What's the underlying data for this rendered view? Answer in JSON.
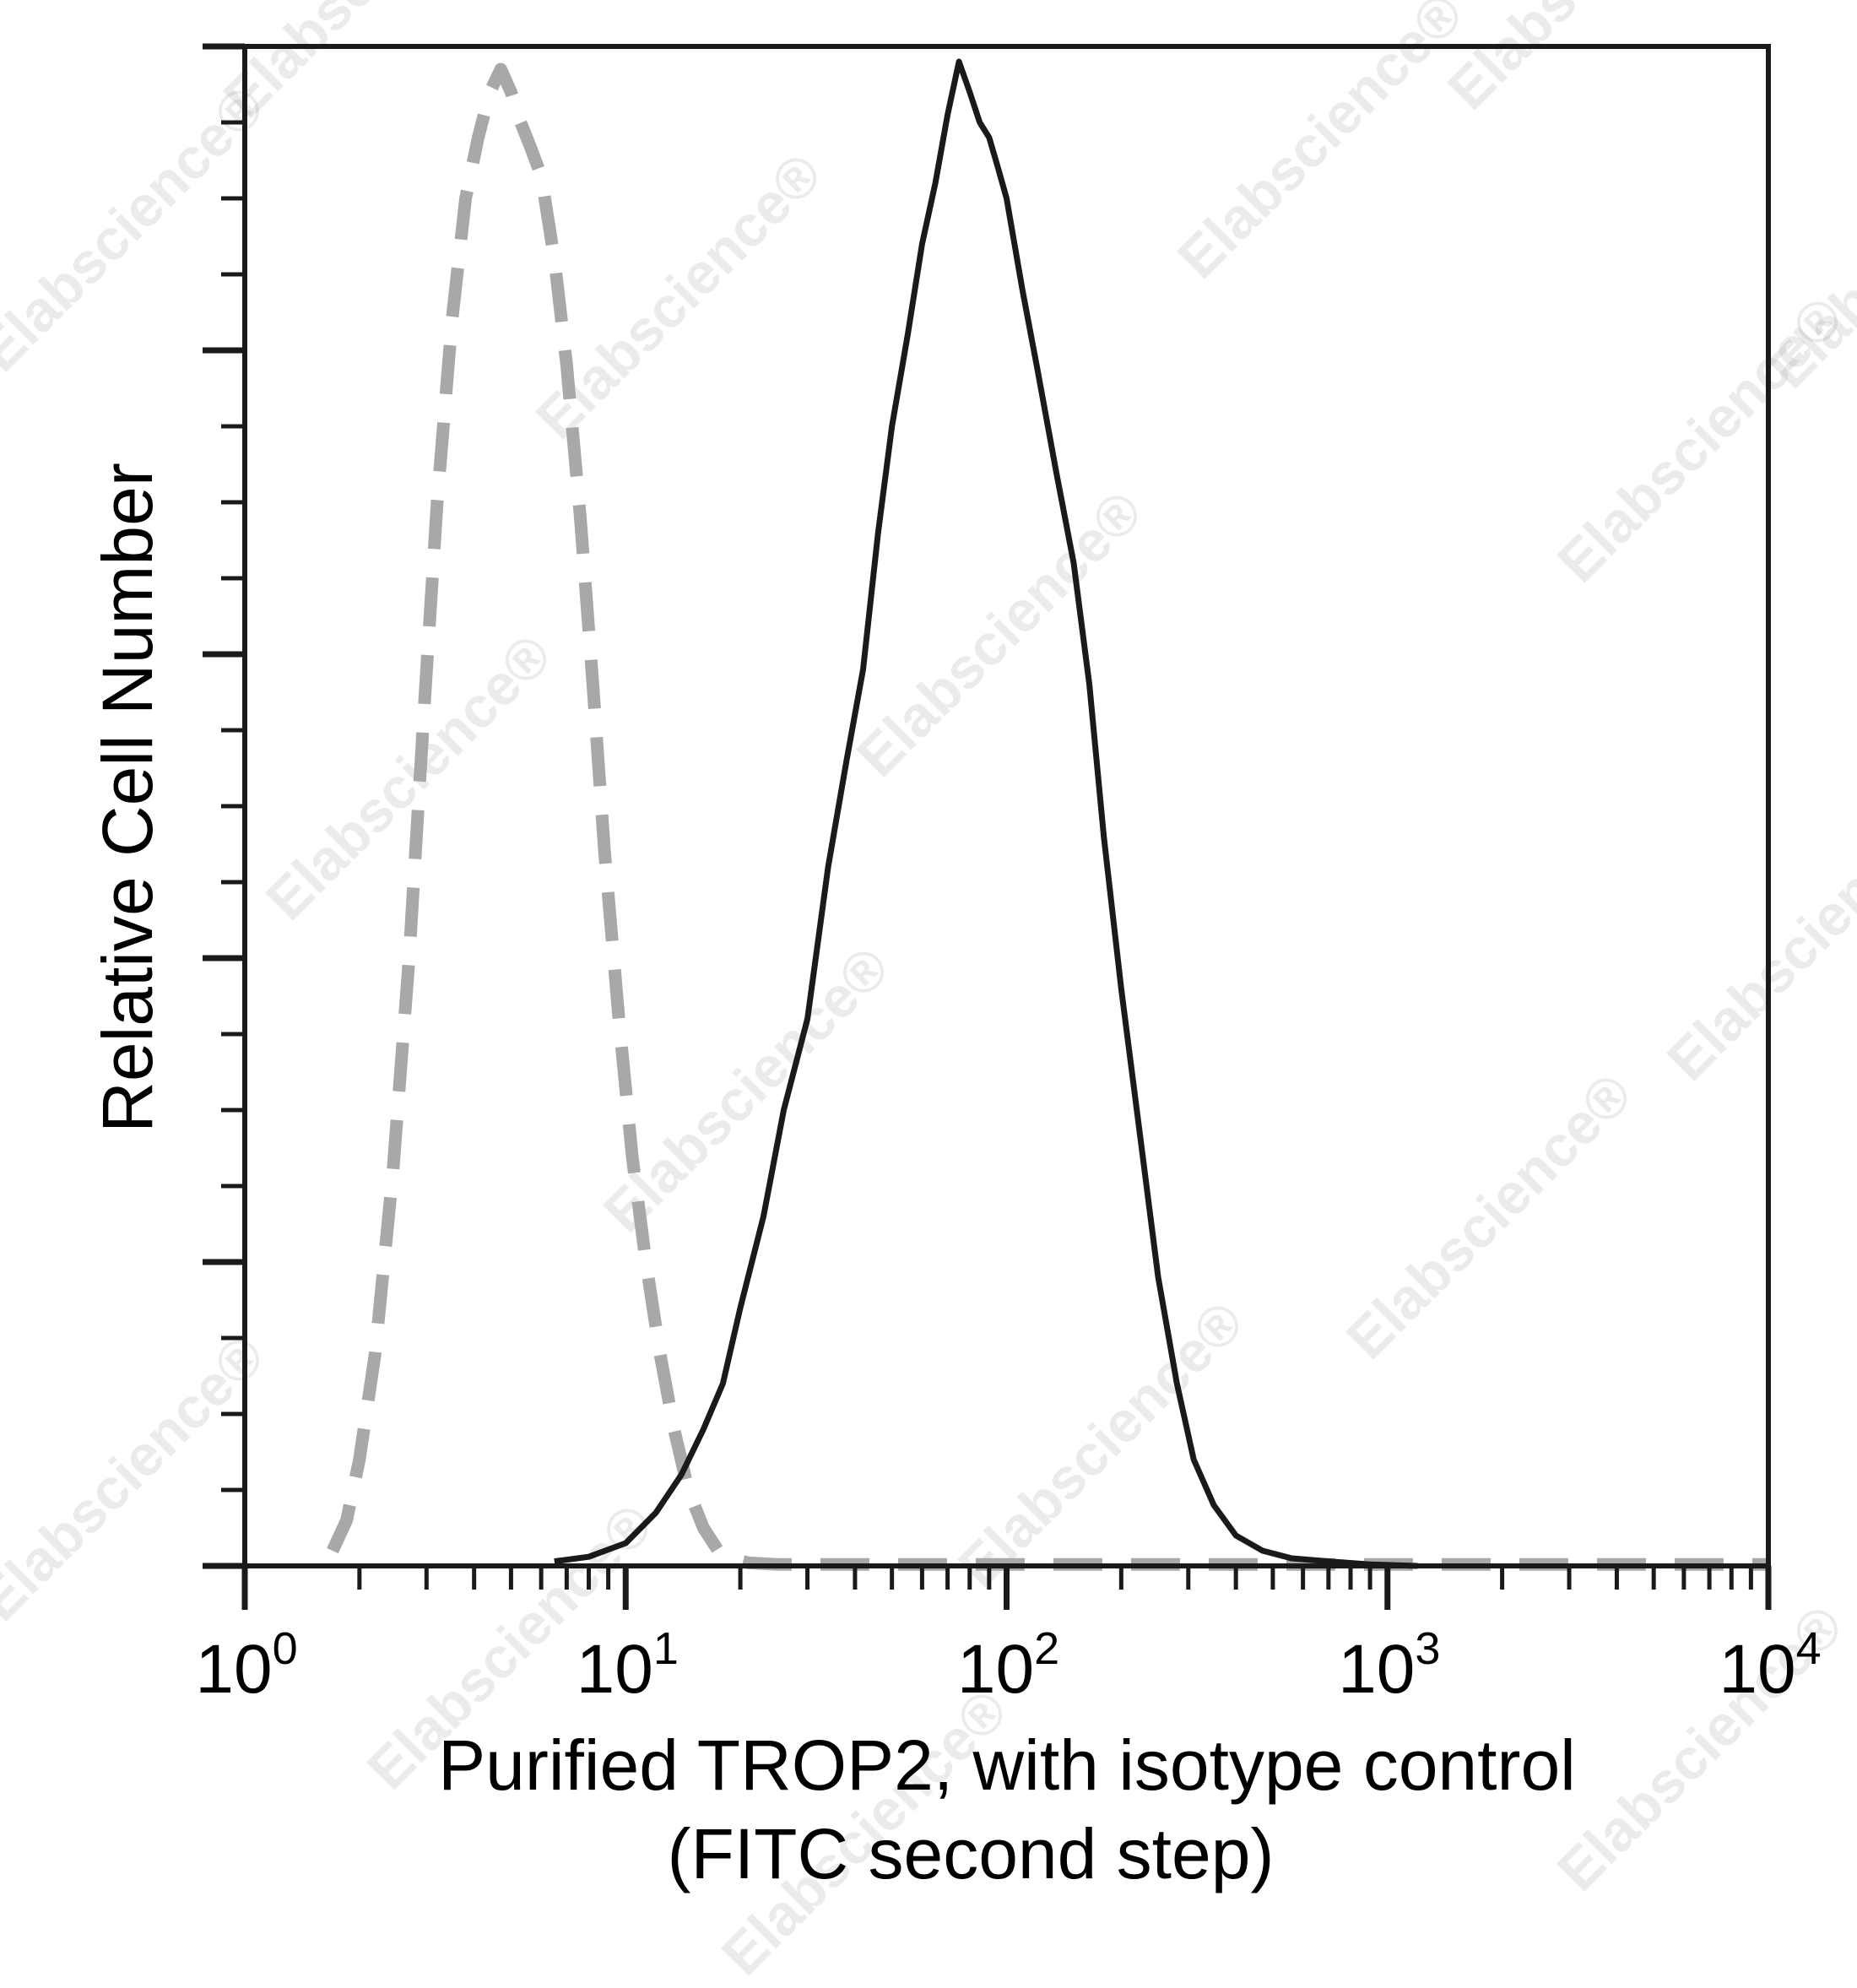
{
  "watermark_text": "Elabscience",
  "watermark_symbol": "®",
  "chart_data": {
    "type": "histogram",
    "title": "",
    "xlabel_line1": "Purified TROP2, with isotype control",
    "xlabel_line2": "(FITC second step)",
    "ylabel": "Relative Cell Number",
    "x_scale": "log",
    "xlim": [
      1,
      10000
    ],
    "ylim": [
      0,
      100
    ],
    "x_ticks": [
      {
        "base": "10",
        "exp": "0"
      },
      {
        "base": "10",
        "exp": "1"
      },
      {
        "base": "10",
        "exp": "2"
      },
      {
        "base": "10",
        "exp": "3"
      },
      {
        "base": "10",
        "exp": "4"
      }
    ],
    "y_major_ticks": [
      0,
      20,
      40,
      60,
      80,
      100
    ],
    "y_minor_step": 5,
    "grid": false,
    "legend": "none",
    "series": [
      {
        "style": "dashed",
        "color": "#a8a8a8",
        "x": [
          1.7,
          1.85,
          2.0,
          2.2,
          2.45,
          2.7,
          2.95,
          3.2,
          3.5,
          3.8,
          4.1,
          4.4,
          4.7,
          5.0,
          5.3,
          5.6,
          6.0,
          6.5,
          7.0,
          7.6,
          8.2,
          8.8,
          9.6,
          10.4,
          11.3,
          12.3,
          13.4,
          14.6,
          16.0,
          17.5,
          19.0,
          21.0,
          25.0,
          35.0,
          60.0,
          100.0,
          200.0,
          400.0,
          800.0,
          2000.0,
          10000.0
        ],
        "y": [
          1.0,
          3.0,
          7.0,
          14.0,
          26.0,
          40.0,
          56.0,
          70.0,
          82.0,
          90.0,
          94.0,
          97.0,
          98.5,
          97.0,
          95.0,
          93.5,
          91.5,
          86.0,
          79.0,
          69.0,
          58.0,
          47.0,
          36.0,
          27.0,
          20.0,
          14.0,
          9.0,
          5.0,
          2.5,
          1.0,
          0.5,
          0.2,
          0.1,
          0.1,
          0.1,
          0.1,
          0.1,
          0.1,
          0.1,
          0.1,
          0.1
        ]
      },
      {
        "style": "solid",
        "color": "#1a1a1a",
        "x": [
          6.5,
          8.0,
          10.0,
          12.0,
          14.0,
          16.0,
          18.0,
          20.0,
          23.0,
          26.0,
          30.0,
          34.0,
          38.0,
          42.0,
          46.0,
          50.0,
          55.0,
          60.0,
          65.0,
          70.0,
          75.0,
          80.0,
          85.0,
          90.0,
          95.0,
          100.0,
          110.0,
          120.0,
          135.0,
          150.0,
          165.0,
          180.0,
          200.0,
          225.0,
          250.0,
          280.0,
          310.0,
          350.0,
          400.0,
          470.0,
          560.0,
          700.0,
          900.0,
          1200.0
        ],
        "y": [
          0.3,
          0.6,
          1.5,
          3.5,
          6.0,
          9.0,
          12.0,
          17.0,
          23.0,
          30.0,
          36.0,
          46.0,
          53.0,
          59.0,
          68.0,
          75.0,
          81.0,
          87.0,
          91.0,
          95.5,
          99.0,
          97.0,
          95.0,
          94.0,
          92.0,
          90.0,
          84.0,
          79.0,
          72.0,
          66.0,
          58.0,
          48.0,
          38.0,
          28.0,
          19.0,
          12.0,
          7.0,
          4.0,
          2.0,
          1.0,
          0.5,
          0.3,
          0.1,
          0.0
        ]
      }
    ]
  }
}
